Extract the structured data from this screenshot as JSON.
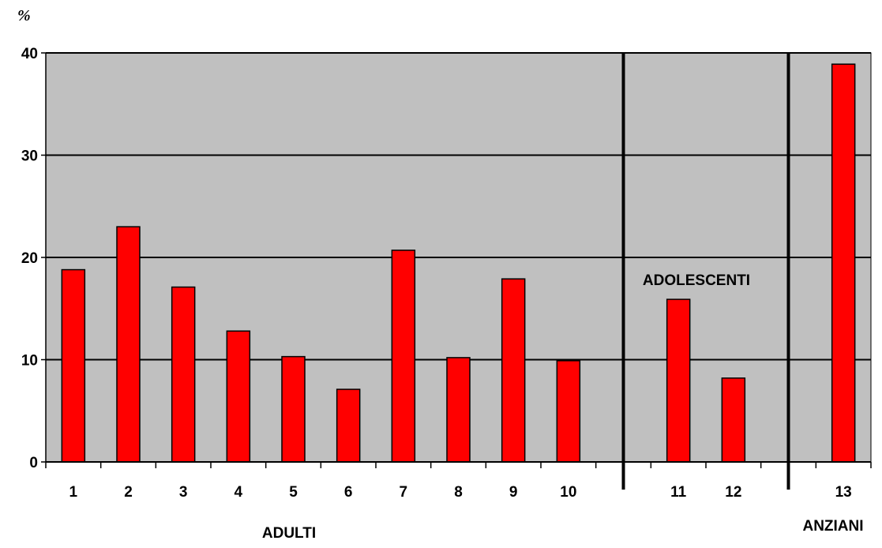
{
  "chart_data": {
    "type": "bar",
    "title": "",
    "xlabel": "",
    "ylabel": "%",
    "ylim": [
      0,
      40
    ],
    "yticks": [
      "0",
      "10",
      "20",
      "30",
      "40"
    ],
    "grid": true,
    "categories": [
      "1",
      "2",
      "3",
      "4",
      "5",
      "6",
      "7",
      "8",
      "9",
      "10",
      "",
      "11",
      "12",
      "",
      "13"
    ],
    "values": [
      18.8,
      23.0,
      17.1,
      12.8,
      10.3,
      7.1,
      20.7,
      10.2,
      17.9,
      9.9,
      null,
      15.9,
      8.2,
      null,
      38.9
    ],
    "group_separators_after_index": [
      10,
      13
    ],
    "groups": [
      {
        "label": "ADULTI"
      },
      {
        "label": "ADOLESCENTI"
      },
      {
        "label": "ANZIANI"
      }
    ],
    "colors": {
      "bar": "#ff0000",
      "bar_stroke": "#000000",
      "plot_background": "#c0c0c0",
      "grid": "#000000"
    }
  }
}
